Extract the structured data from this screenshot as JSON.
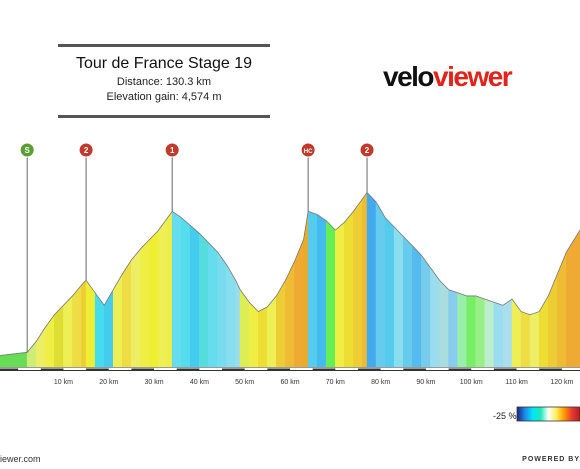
{
  "header": {
    "title": "Tour de France Stage 19",
    "distance": "Distance: 130.3 km",
    "elevation_gain": "Elevation gain: 4,574 m"
  },
  "logo": {
    "part1": "velo",
    "part2": "viewer"
  },
  "footer": {
    "left": "iewer.com",
    "right": "POWERED BY"
  },
  "legend": {
    "label": "-25 %"
  },
  "colors": {
    "climb_markers": {
      "S": "#5a9e32",
      "HC": "#c0392b",
      "1": "#c0392b",
      "2": "#c0392b"
    },
    "gradient_legend": [
      "#1a237e",
      "#1e88e5",
      "#00e5ff",
      "#1de9b6",
      "#ffffff",
      "#ffee58",
      "#ff9800",
      "#e53935",
      "#b71c1c"
    ]
  },
  "chart_data": {
    "type": "area",
    "title": "Tour de France Stage 19",
    "xlabel": "",
    "ylabel": "",
    "x_unit": "km",
    "xlim": [
      -4,
      124
    ],
    "x_ticks": [
      "10 km",
      "20 km",
      "30 km",
      "40 km",
      "50 km",
      "60 km",
      "70 km",
      "80 km",
      "90 km",
      "100 km",
      "110 km",
      "120 km"
    ],
    "x_tick_values": [
      10,
      20,
      30,
      40,
      50,
      60,
      70,
      80,
      90,
      100,
      110,
      120
    ],
    "climbs": [
      {
        "label": "S",
        "km": 2
      },
      {
        "label": "2",
        "km": 15
      },
      {
        "label": "1",
        "km": 34
      },
      {
        "label": "HC",
        "km": 64
      },
      {
        "label": "2",
        "km": 77
      }
    ],
    "profile_km": [
      -4,
      2,
      4,
      6,
      8,
      10,
      12,
      14,
      15,
      17,
      19,
      21,
      23,
      25,
      27,
      29,
      31,
      33,
      34,
      36,
      38,
      40,
      42,
      44,
      46,
      48,
      49,
      51,
      53,
      55,
      57,
      59,
      61,
      63,
      64,
      66,
      68,
      70,
      72,
      74,
      76,
      77,
      79,
      81,
      83,
      85,
      87,
      89,
      91,
      93,
      95,
      97,
      99,
      101,
      103,
      105,
      107,
      109,
      111,
      113,
      115,
      117,
      119,
      121,
      124
    ],
    "profile_rel": [
      0.08,
      0.1,
      0.17,
      0.26,
      0.34,
      0.4,
      0.46,
      0.53,
      0.56,
      0.48,
      0.4,
      0.5,
      0.6,
      0.69,
      0.76,
      0.82,
      0.88,
      0.96,
      1.0,
      0.96,
      0.91,
      0.86,
      0.8,
      0.74,
      0.66,
      0.56,
      0.5,
      0.42,
      0.36,
      0.39,
      0.46,
      0.56,
      0.68,
      0.82,
      1.0,
      0.98,
      0.94,
      0.88,
      0.93,
      1.0,
      1.08,
      1.12,
      1.06,
      0.96,
      0.9,
      0.84,
      0.78,
      0.72,
      0.64,
      0.56,
      0.5,
      0.48,
      0.46,
      0.46,
      0.44,
      0.42,
      0.4,
      0.44,
      0.36,
      0.34,
      0.36,
      0.46,
      0.6,
      0.74,
      0.88
    ],
    "gradient_colors": [
      "#66dd55",
      "#ccee77",
      "#eeee66",
      "#eeee44",
      "#dddd33",
      "#eeee55",
      "#eedd44",
      "#eecc33",
      "#eeee33",
      "#44ddee",
      "#44ccee",
      "#eeee55",
      "#eedd44",
      "#eeee66",
      "#eeee44",
      "#eeee33",
      "#eeee55",
      "#eeee44",
      "#66ddee",
      "#55ddee",
      "#44ccee",
      "#55dddd",
      "#66ddee",
      "#77ddee",
      "#88ddee",
      "#99ddee",
      "#ddee55",
      "#eeee44",
      "#eedd33",
      "#eeee55",
      "#eecc33",
      "#eebb33",
      "#eeaa33",
      "#eeaa22",
      "#55ccee",
      "#44bbee",
      "#66ee55",
      "#eeee44",
      "#eedd33",
      "#eecc33",
      "#eebb33",
      "#44aaee",
      "#66ccee",
      "#55ccee",
      "#88ddee",
      "#66ccee",
      "#55bbee",
      "#77ccee",
      "#99ddee",
      "#aadddd",
      "#88ccee",
      "#99eeaa",
      "#77ee66",
      "#99ee88",
      "#bbeecc",
      "#99ddee",
      "#aaddee",
      "#eeee55",
      "#eedd44",
      "#eeee66",
      "#eedd33",
      "#eecc33",
      "#eebb33",
      "#eeaa33"
    ]
  }
}
